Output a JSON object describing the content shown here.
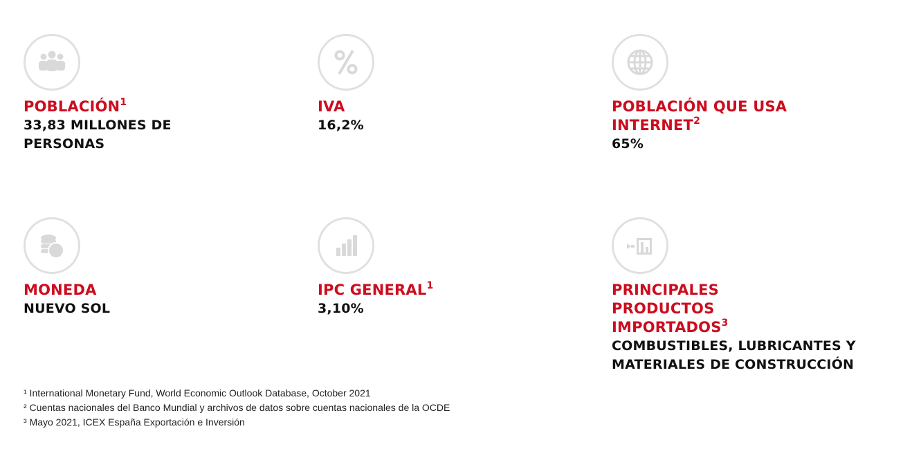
{
  "stats": [
    {
      "icon": "people-icon",
      "title": "POBLACIÓN",
      "sup": "1",
      "value": "33,83 MILLONES DE PERSONAS"
    },
    {
      "icon": "percent-icon",
      "title": "IVA",
      "sup": "",
      "value": "16,2%"
    },
    {
      "icon": "globe-icon",
      "title": "POBLACIÓN QUE USA INTERNET",
      "sup": "2",
      "value": "65%"
    },
    {
      "icon": "coins-icon",
      "title": "MONEDA",
      "sup": "",
      "value": "NUEVO SOL"
    },
    {
      "icon": "bar-chart-icon",
      "title": "IPC GENERAL",
      "sup": "1",
      "value": "3,10%"
    },
    {
      "icon": "warehouse-import-icon",
      "title": "PRINCIPALES PRODUCTOS IMPORTADOS",
      "sup": "3",
      "value": "COMBUSTIBLES, LUBRICANTES Y MATERIALES DE CONSTRUCCIÓN"
    }
  ],
  "footnotes": [
    "¹ International Monetary Fund, World Economic Outlook Database, October 2021",
    "² Cuentas nacionales del Banco Mundial y archivos de datos sobre cuentas nacionales de la OCDE",
    "³ Mayo 2021, ICEX España Exportación e Inversión"
  ],
  "colors": {
    "accent": "#cc0d1f",
    "text": "#111111",
    "icon": "#d9d9d9",
    "ring": "#e0e0e0"
  }
}
